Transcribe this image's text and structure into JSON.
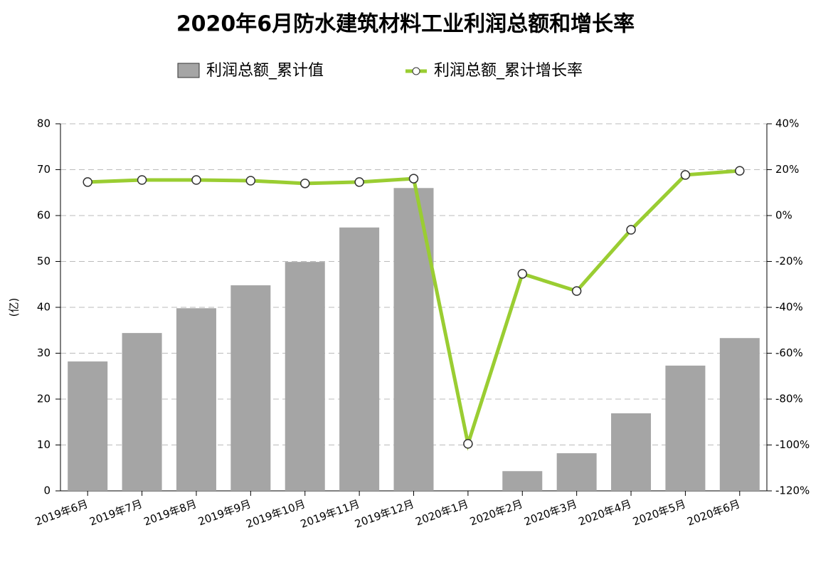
{
  "chart_data": {
    "type": "bar_line",
    "title": "2020年6月防水建筑材料工业利润总额和增长率",
    "y_label": "(亿)",
    "categories": [
      "2019年6月",
      "2019年7月",
      "2019年8月",
      "2019年9月",
      "2019年10月",
      "2019年11月",
      "2019年12月",
      "2020年1月",
      "2020年2月",
      "2020年3月",
      "2020年4月",
      "2020年5月",
      "2020年6月"
    ],
    "series": [
      {
        "name": "利润总额_累计值",
        "type": "bar",
        "color": "#a5a5a5",
        "values": [
          28.2,
          34.4,
          39.8,
          44.8,
          49.9,
          57.4,
          66.0,
          null,
          4.3,
          8.2,
          16.9,
          27.3,
          33.3
        ]
      },
      {
        "name": "利润总额_累计增长率",
        "type": "line",
        "axis": "y2",
        "color": "#9acd32",
        "values": [
          14.6,
          15.5,
          15.5,
          15.2,
          14.0,
          14.6,
          16.1,
          -99.5,
          -25.4,
          -32.9,
          -6.2,
          17.7,
          19.5
        ]
      }
    ],
    "ylim": [
      0,
      80
    ],
    "yticks": [
      0,
      10,
      20,
      30,
      40,
      50,
      60,
      70,
      80
    ],
    "y2lim": [
      -120,
      40
    ],
    "y2ticks": [
      {
        "value": -120,
        "label": "-120%"
      },
      {
        "value": -100,
        "label": "-100%"
      },
      {
        "value": -80,
        "label": "-80%"
      },
      {
        "value": -60,
        "label": "-60%"
      },
      {
        "value": -40,
        "label": "-40%"
      },
      {
        "value": -20,
        "label": "-20%"
      },
      {
        "value": 0,
        "label": "0%"
      },
      {
        "value": 20,
        "label": "20%"
      },
      {
        "value": 40,
        "label": "40%"
      }
    ],
    "grid": true,
    "legend": "top"
  }
}
